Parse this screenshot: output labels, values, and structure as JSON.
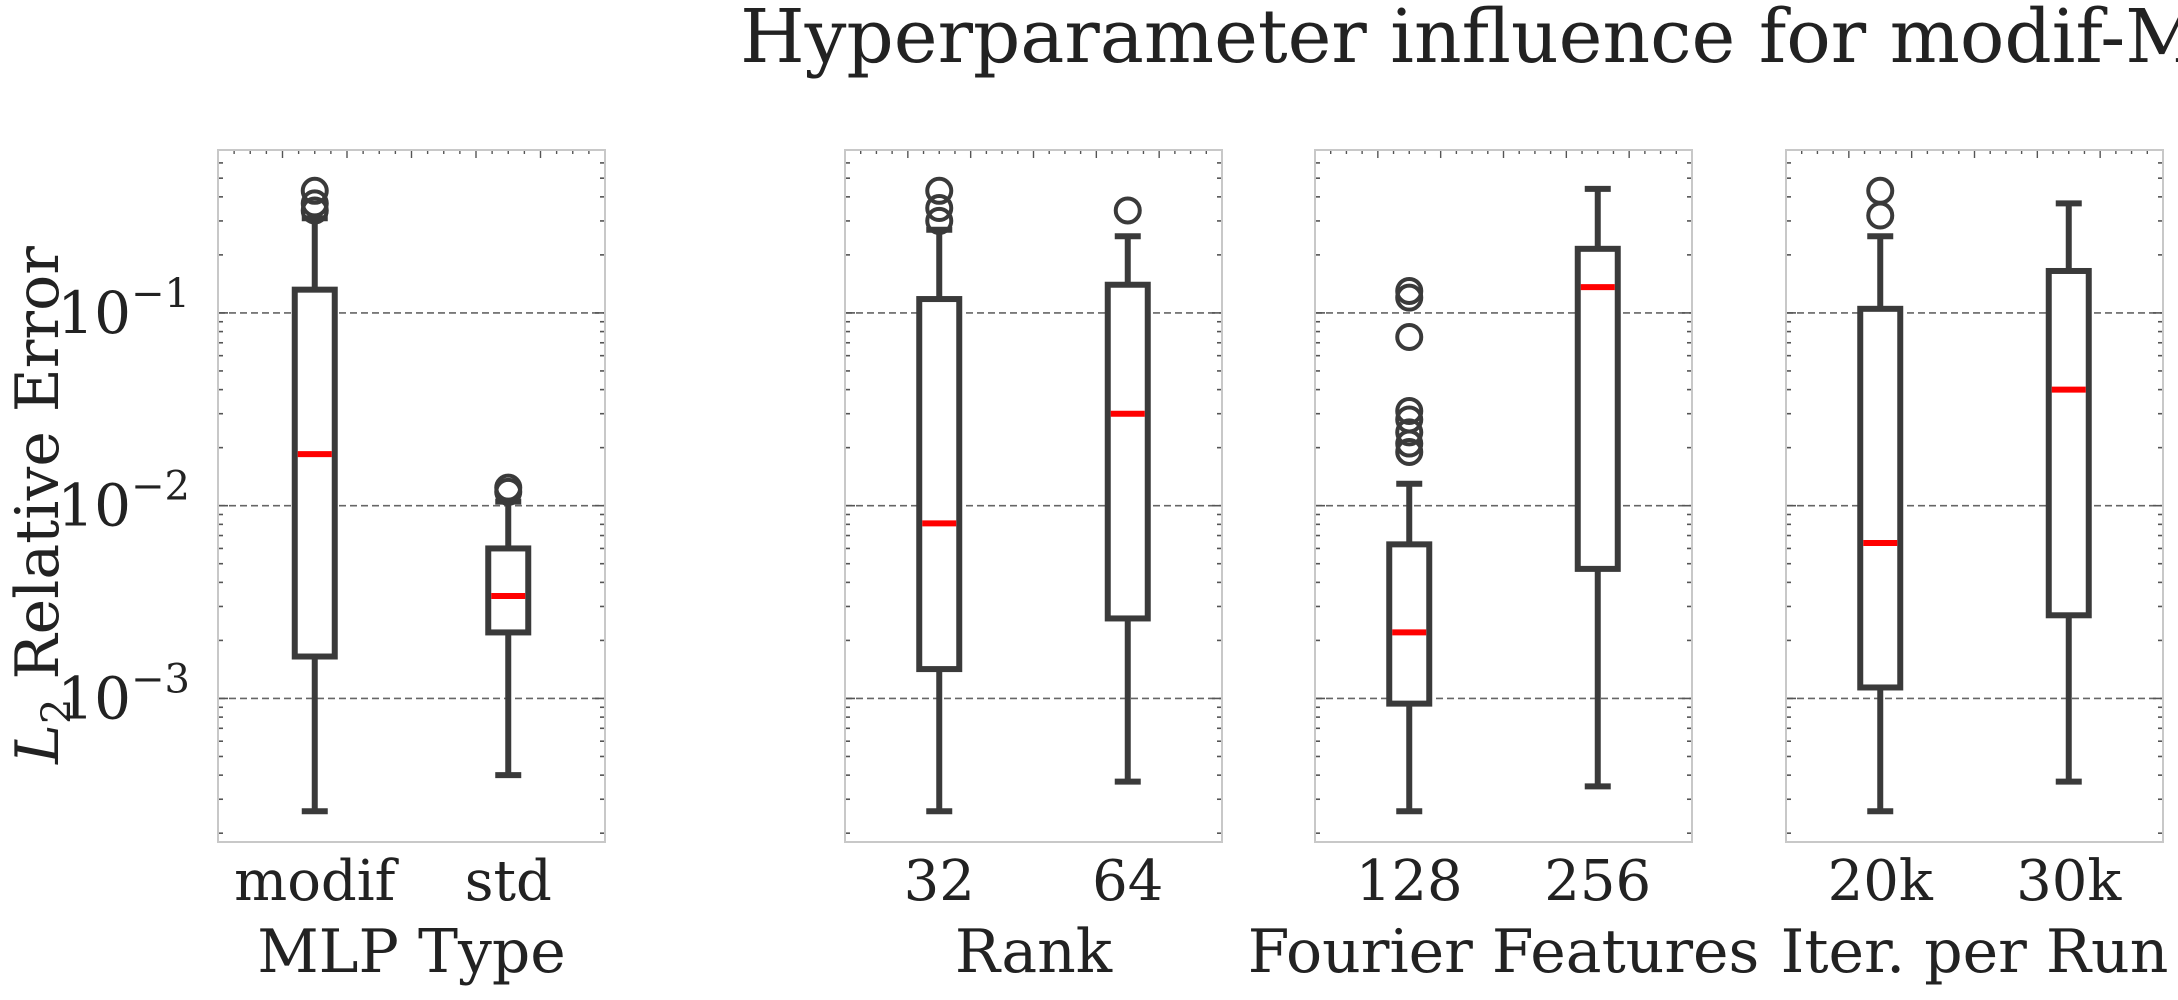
{
  "chart_data": {
    "type": "box",
    "title": "Hyperparameter influence for modif-MLP",
    "ylabel": "L2 Relative Error",
    "yscale": "log",
    "ylim": [
      0.00018,
      0.7
    ],
    "yticks": [
      {
        "value": 0.1,
        "base": "10",
        "exp": "−1"
      },
      {
        "value": 0.01,
        "base": "10",
        "exp": "−2"
      },
      {
        "value": 0.001,
        "base": "10",
        "exp": "−3"
      }
    ],
    "grid": "horizontal-dashed",
    "colors": {
      "box": "#3a3a3a",
      "median": "#ff0000",
      "grid": "#666666",
      "frame": "#c8c8c8"
    },
    "panels": [
      {
        "xlabel": "MLP Type",
        "categories": [
          {
            "label": "modif",
            "whisker_low": 0.00026,
            "q1": 0.00165,
            "median": 0.0185,
            "q3": 0.132,
            "whisker_high": 0.31,
            "fliers": [
              0.34,
              0.37,
              0.43
            ]
          },
          {
            "label": "std",
            "whisker_low": 0.0004,
            "q1": 0.0022,
            "median": 0.0034,
            "q3": 0.006,
            "whisker_high": 0.0105,
            "fliers": [
              0.0118,
              0.0124
            ]
          }
        ]
      },
      {
        "xlabel": "Rank",
        "categories": [
          {
            "label": "32",
            "whisker_low": 0.00026,
            "q1": 0.00142,
            "median": 0.0081,
            "q3": 0.118,
            "whisker_high": 0.27,
            "fliers": [
              0.3,
              0.35,
              0.43
            ]
          },
          {
            "label": "64",
            "whisker_low": 0.00037,
            "q1": 0.0026,
            "median": 0.03,
            "q3": 0.14,
            "whisker_high": 0.25,
            "fliers": [
              0.34
            ]
          }
        ]
      },
      {
        "xlabel": "Fourier Features",
        "categories": [
          {
            "label": "128",
            "whisker_low": 0.00026,
            "q1": 0.00094,
            "median": 0.0022,
            "q3": 0.0063,
            "whisker_high": 0.013,
            "fliers": [
              0.019,
              0.021,
              0.024,
              0.028,
              0.031,
              0.075,
              0.12,
              0.13
            ]
          },
          {
            "label": "256",
            "whisker_low": 0.00035,
            "q1": 0.0047,
            "median": 0.136,
            "q3": 0.215,
            "whisker_high": 0.44,
            "fliers": []
          }
        ]
      },
      {
        "xlabel": "Iter. per Run",
        "categories": [
          {
            "label": "20k",
            "whisker_low": 0.00026,
            "q1": 0.00114,
            "median": 0.0064,
            "q3": 0.105,
            "whisker_high": 0.25,
            "fliers": [
              0.32,
              0.43
            ]
          },
          {
            "label": "30k",
            "whisker_low": 0.00037,
            "q1": 0.0027,
            "median": 0.04,
            "q3": 0.165,
            "whisker_high": 0.37,
            "fliers": []
          }
        ]
      }
    ]
  }
}
